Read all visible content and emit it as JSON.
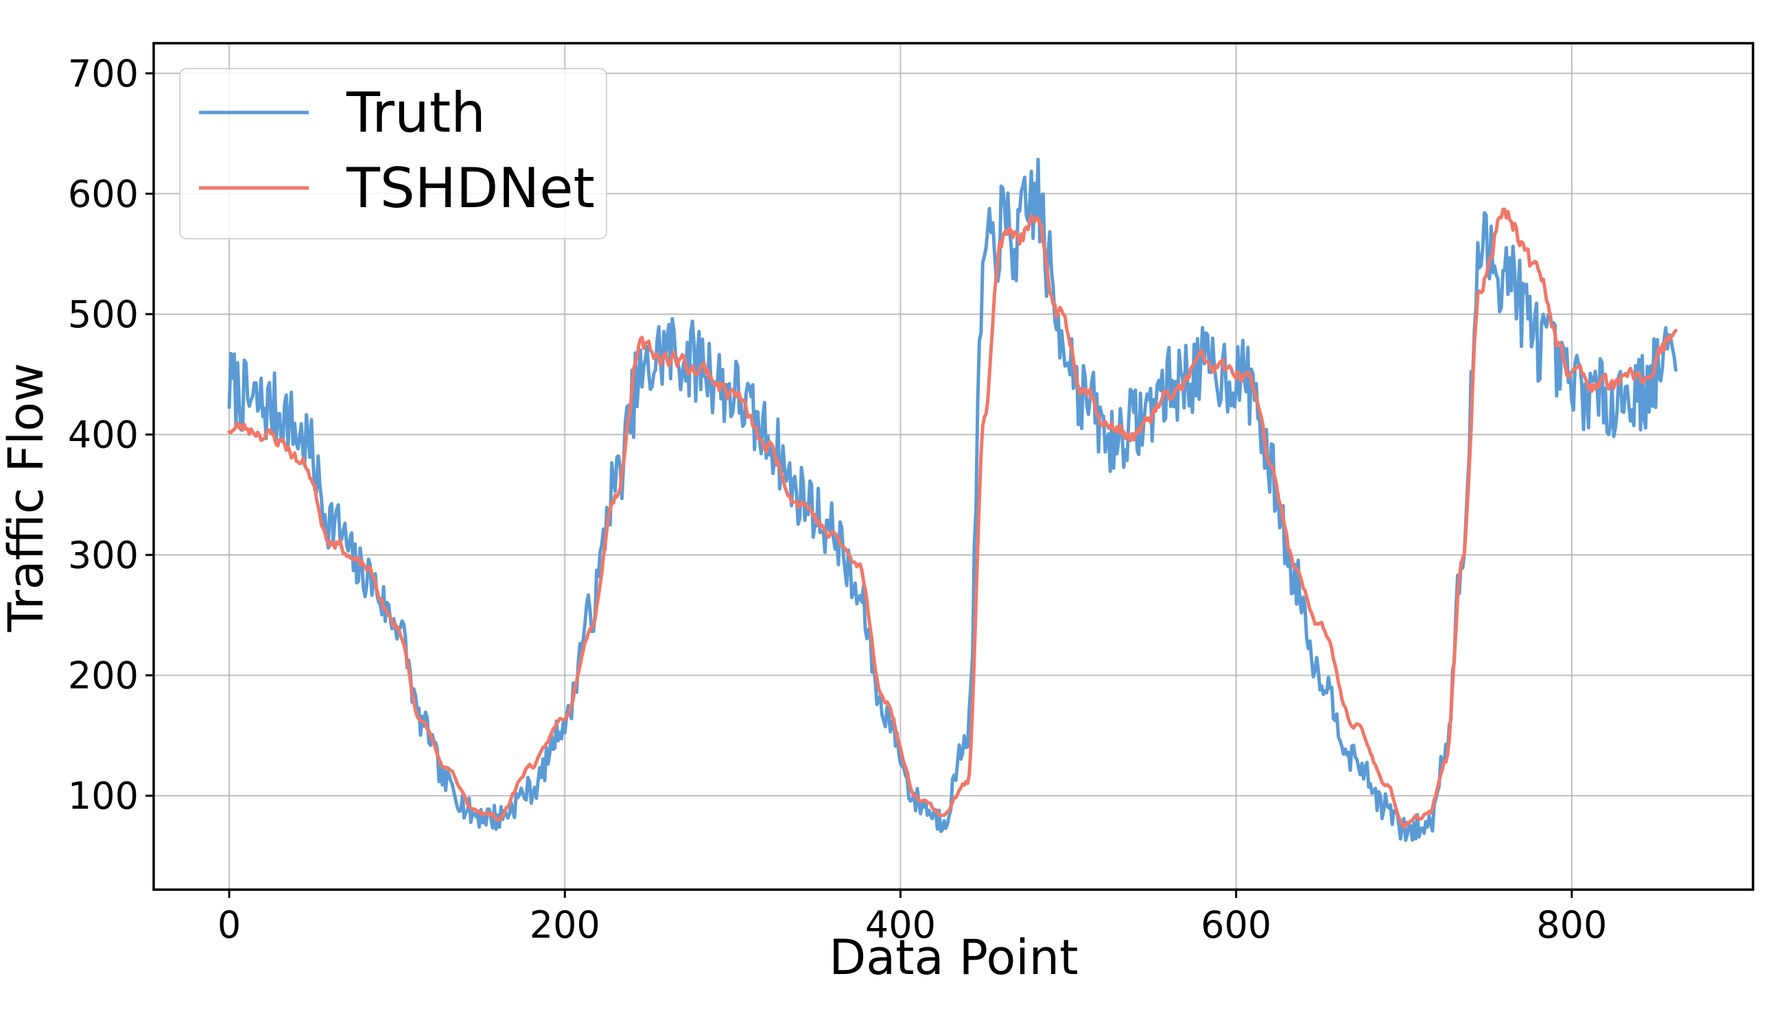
{
  "chart_data": {
    "type": "line",
    "title": "",
    "xlabel": "Data Point",
    "ylabel": "Traffic Flow",
    "xlim": [
      -45,
      908
    ],
    "ylim": [
      22,
      725
    ],
    "grid": true,
    "legend_position": "upper-left",
    "x_ticks": [
      0,
      200,
      400,
      600,
      800
    ],
    "y_ticks": [
      100,
      200,
      300,
      400,
      500,
      600,
      700
    ],
    "x_tick_labels": [
      "0",
      "200",
      "400",
      "600",
      "800"
    ],
    "y_tick_labels": [
      "100",
      "200",
      "300",
      "400",
      "500",
      "600",
      "700"
    ],
    "series": [
      {
        "name": "Truth",
        "color": "#5b9bd5",
        "x_start": 0,
        "x_step": 1,
        "anchors_x": [
          0,
          15,
          30,
          45,
          60,
          80,
          100,
          115,
          130,
          145,
          160,
          180,
          200,
          215,
          230,
          245,
          260,
          280,
          300,
          320,
          340,
          360,
          375,
          390,
          410,
          425,
          440,
          450,
          460,
          470,
          480,
          495,
          510,
          525,
          540,
          560,
          580,
          600,
          610,
          620,
          635,
          650,
          670,
          690,
          700,
          715,
          725,
          735,
          745,
          760,
          780,
          800,
          820,
          840,
          862
        ],
        "anchors_y": [
          440,
          425,
          420,
          395,
          330,
          285,
          245,
          160,
          110,
          85,
          82,
          105,
          160,
          250,
          360,
          445,
          470,
          460,
          435,
          400,
          350,
          320,
          265,
          170,
          95,
          80,
          150,
          540,
          570,
          560,
          600,
          490,
          430,
          395,
          410,
          440,
          455,
          450,
          440,
          370,
          280,
          200,
          130,
          90,
          70,
          75,
          140,
          300,
          550,
          540,
          480,
          440,
          430,
          435,
          470
        ],
        "noise_amplitude": 34,
        "seed": 7
      },
      {
        "name": "TSHDNet",
        "color": "#f07869",
        "x_start": 0,
        "x_step": 1,
        "anchors_x": [
          0,
          15,
          30,
          45,
          60,
          80,
          100,
          115,
          130,
          145,
          160,
          180,
          200,
          215,
          230,
          245,
          260,
          280,
          300,
          320,
          340,
          360,
          375,
          390,
          410,
          425,
          440,
          450,
          460,
          470,
          480,
          495,
          510,
          525,
          540,
          560,
          580,
          600,
          610,
          620,
          635,
          650,
          670,
          690,
          700,
          715,
          725,
          735,
          745,
          760,
          780,
          800,
          820,
          840,
          862
        ],
        "anchors_y": [
          405,
          405,
          395,
          375,
          315,
          290,
          240,
          160,
          120,
          90,
          82,
          125,
          165,
          240,
          350,
          470,
          465,
          455,
          435,
          390,
          345,
          315,
          290,
          180,
          100,
          85,
          110,
          420,
          560,
          565,
          570,
          500,
          440,
          405,
          400,
          430,
          460,
          450,
          440,
          380,
          290,
          240,
          160,
          110,
          75,
          85,
          130,
          300,
          520,
          590,
          530,
          450,
          440,
          445,
          480
        ],
        "noise_amplitude": 9,
        "seed": 23
      }
    ]
  }
}
